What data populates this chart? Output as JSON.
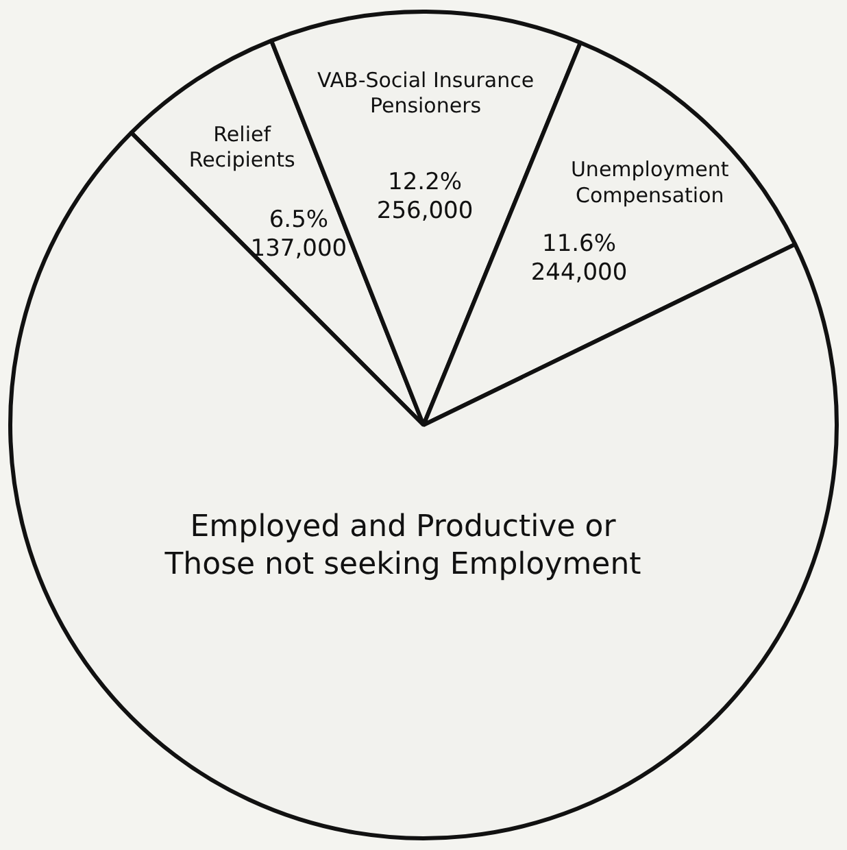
{
  "chart_data": {
    "type": "pie",
    "categories": [
      "Relief Recipients",
      "VAB-Social Insurance Pensioners",
      "Unemployment Compensation",
      "Employed and Productive or Those not seeking Employment"
    ],
    "values": [
      6.5,
      12.2,
      11.6,
      69.7
    ],
    "value_labels": [
      "6.5% 137,000",
      "12.2% 256,000",
      "11.6% 244,000",
      null
    ],
    "colors": [
      "#f2f2ee",
      "#f2f2ee",
      "#f2f2ee",
      "#f2f2ee"
    ],
    "legend": false
  }
}
